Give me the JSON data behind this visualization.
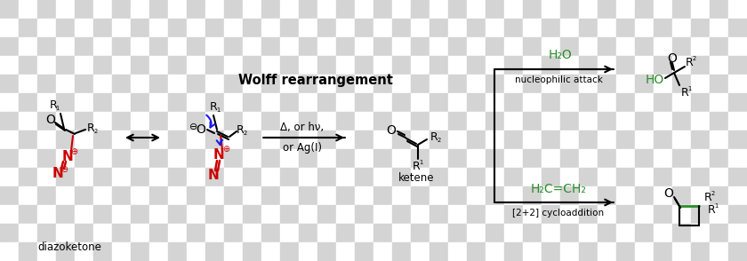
{
  "fig_width": 8.4,
  "fig_height": 2.94,
  "dpi": 100,
  "black": "#000000",
  "red": "#cc0000",
  "green": "#2a8c2a",
  "blue": "#1a1aee",
  "gray_checker1": "#d4d4d4",
  "gray_checker2": "#ffffff",
  "label_diazoketone": "diazoketone",
  "label_ketene": "ketene",
  "label_wolff": "Wolff rearrangement",
  "label_delta_hv": "Δ, or hν,",
  "label_ag": "or Ag(I)",
  "label_h2o": "H₂O",
  "label_nucleophilic": "nucleophilic attack",
  "label_h2c": "H₂C=CH₂",
  "label_cycloaddition": "[2+2] cycloaddition",
  "label_ho": "HO"
}
